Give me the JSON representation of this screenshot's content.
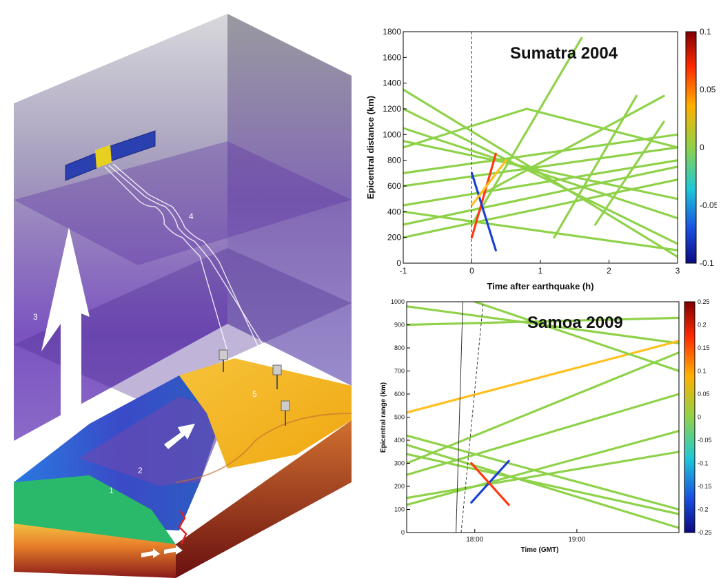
{
  "illustration": {
    "labels": [
      "1",
      "2",
      "3",
      "4",
      "5"
    ],
    "colors": {
      "sky_top": "#8e8e95",
      "sky_bottom": "#6a3fb0",
      "ionosphere_layer": "#4b2a88",
      "ocean_deep": "#1f3fd0",
      "ocean_shelf": "#2ac06a",
      "land": "#f0b21a",
      "crust": "#c8622a",
      "arrow": "#ffffff",
      "rupture": "#e02020"
    },
    "icons": [
      "satellite-icon",
      "gps-receiver-icon",
      "rupture-icon",
      "upward-arrow-icon",
      "wave-arrow-icon",
      "slip-arrow-icon"
    ]
  },
  "charts": {
    "top": {
      "title": "Sumatra 2004",
      "xlabel": "Time after earthquake (h)",
      "ylabel": "Epicentral distance (km)",
      "xticks": [
        "-1",
        "0",
        "1",
        "2",
        "3"
      ],
      "yticks": [
        "0",
        "200",
        "400",
        "600",
        "800",
        "1000",
        "1200",
        "1400",
        "1600",
        "1800"
      ],
      "colorbar_ticks": [
        "0.1",
        "0.05",
        "0",
        "-0.05",
        "-0.1"
      ]
    },
    "bottom": {
      "title": "Samoa 2009",
      "xlabel": "Time (GMT)",
      "ylabel": "Epicentral range (km)",
      "xticks": [
        "18:00",
        "19:00"
      ],
      "yticks": [
        "0",
        "100",
        "200",
        "300",
        "400",
        "500",
        "600",
        "700",
        "800",
        "900",
        "1000"
      ],
      "colorbar_ticks": [
        "0.25",
        "0.2",
        "0.15",
        "0.1",
        "0.05",
        "0",
        "-0.05",
        "-0.1",
        "-0.15",
        "-0.2",
        "-0.25"
      ]
    }
  },
  "chart_data": [
    {
      "type": "line",
      "title": "Sumatra 2004",
      "xlabel": "Time after earthquake (h)",
      "ylabel": "Epicentral distance (km)",
      "xlim": [
        -1,
        3
      ],
      "ylim": [
        0,
        1800
      ],
      "colorbar": {
        "min": -0.1,
        "max": 0.1
      },
      "annotations": [
        {
          "type": "vline",
          "x": 0,
          "style": "dashed"
        }
      ],
      "series": [
        {
          "x": [
            -1,
            3
          ],
          "y": [
            1350,
            50
          ],
          "color_value": 0
        },
        {
          "x": [
            -1,
            3
          ],
          "y": [
            1200,
            150
          ],
          "color_value": 0
        },
        {
          "x": [
            -1,
            3
          ],
          "y": [
            1050,
            350
          ],
          "color_value": 0
        },
        {
          "x": [
            -1,
            3
          ],
          "y": [
            950,
            500
          ],
          "color_value": 0
        },
        {
          "x": [
            -1,
            3
          ],
          "y": [
            700,
            1000
          ],
          "color_value": 0
        },
        {
          "x": [
            -1,
            3
          ],
          "y": [
            600,
            900
          ],
          "color_value": 0
        },
        {
          "x": [
            -1,
            3
          ],
          "y": [
            450,
            800
          ],
          "color_value": 0
        },
        {
          "x": [
            -1,
            3
          ],
          "y": [
            300,
            750
          ],
          "color_value": 0
        },
        {
          "x": [
            -1,
            3
          ],
          "y": [
            200,
            650
          ],
          "color_value": 0
        },
        {
          "x": [
            -1,
            3
          ],
          "y": [
            400,
            100
          ],
          "color_value": 0
        },
        {
          "x": [
            -1,
            0.8,
            3
          ],
          "y": [
            900,
            1200,
            900
          ],
          "color_value": 0
        },
        {
          "x": [
            0,
            1.6
          ],
          "y": [
            300,
            1750
          ],
          "color_value": 0
        },
        {
          "x": [
            0.2,
            2.8
          ],
          "y": [
            550,
            1300
          ],
          "color_value": 0
        },
        {
          "x": [
            1.2,
            2.4
          ],
          "y": [
            200,
            1300
          ],
          "color_value": 0
        },
        {
          "x": [
            1.8,
            2.8
          ],
          "y": [
            300,
            1100
          ],
          "color_value": 0
        },
        {
          "x": [
            0,
            0.35
          ],
          "y": [
            200,
            850
          ],
          "color_value": 0.08
        },
        {
          "x": [
            0,
            0.35
          ],
          "y": [
            700,
            100
          ],
          "color_value": -0.08
        },
        {
          "x": [
            0,
            0.5
          ],
          "y": [
            450,
            800
          ],
          "color_value": 0.05
        }
      ]
    },
    {
      "type": "line",
      "title": "Samoa 2009",
      "xlabel": "Time (GMT)",
      "ylabel": "Epicentral range (km)",
      "xlim": [
        "17:20",
        "20:00"
      ],
      "ylim": [
        0,
        1000
      ],
      "colorbar": {
        "min": -0.25,
        "max": 0.25
      },
      "annotations": [
        {
          "type": "line",
          "x": [
            "17:49",
            "17:53"
          ],
          "y": [
            0,
            1000
          ],
          "style": "solid"
        },
        {
          "type": "line",
          "x": [
            "17:52",
            "18:05"
          ],
          "y": [
            0,
            1000
          ],
          "style": "dashed"
        }
      ],
      "series": [
        {
          "x": [
            "17:20",
            "20:00"
          ],
          "y": [
            980,
            820
          ],
          "color_value": 0
        },
        {
          "x": [
            "17:20",
            "20:00"
          ],
          "y": [
            900,
            930
          ],
          "color_value": 0
        },
        {
          "x": [
            "17:20",
            "20:00"
          ],
          "y": [
            520,
            830
          ],
          "color_value": 0.05
        },
        {
          "x": [
            "17:20",
            "20:00"
          ],
          "y": [
            420,
            100
          ],
          "color_value": 0
        },
        {
          "x": [
            "17:20",
            "20:00"
          ],
          "y": [
            300,
            780
          ],
          "color_value": 0
        },
        {
          "x": [
            "17:20",
            "20:00"
          ],
          "y": [
            250,
            600
          ],
          "color_value": 0.03
        },
        {
          "x": [
            "17:20",
            "20:00"
          ],
          "y": [
            380,
            20
          ],
          "color_value": 0
        },
        {
          "x": [
            "17:20",
            "20:00"
          ],
          "y": [
            120,
            440
          ],
          "color_value": 0
        },
        {
          "x": [
            "17:20",
            "20:00"
          ],
          "y": [
            340,
            80
          ],
          "color_value": 0
        },
        {
          "x": [
            "17:20",
            "20:00"
          ],
          "y": [
            150,
            350
          ],
          "color_value": 0
        },
        {
          "x": [
            "18:00",
            "20:00"
          ],
          "y": [
            1000,
            700
          ],
          "color_value": 0
        },
        {
          "x": [
            "17:58",
            "18:20"
          ],
          "y": [
            130,
            310
          ],
          "color_value": -0.2
        },
        {
          "x": [
            "17:58",
            "18:20"
          ],
          "y": [
            300,
            120
          ],
          "color_value": 0.2
        }
      ]
    }
  ]
}
